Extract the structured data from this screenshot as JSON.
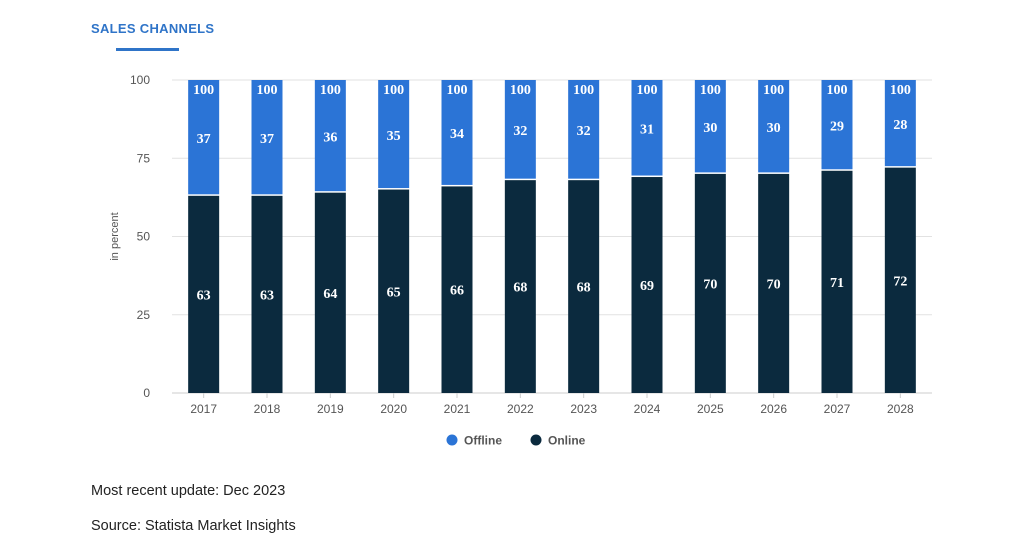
{
  "title": "SALES CHANNELS",
  "footer": {
    "update": "Most recent update: Dec 2023",
    "source": "Source: Statista Market Insights"
  },
  "chart_data": {
    "type": "bar",
    "stacked": true,
    "categories": [
      "2017",
      "2018",
      "2019",
      "2020",
      "2021",
      "2022",
      "2023",
      "2024",
      "2025",
      "2026",
      "2027",
      "2028"
    ],
    "series": [
      {
        "name": "Online",
        "color": "#0b2a3e",
        "values": [
          63,
          63,
          64,
          65,
          66,
          68,
          68,
          69,
          70,
          70,
          71,
          72
        ]
      },
      {
        "name": "Offline",
        "color": "#2b74d6",
        "values": [
          37,
          37,
          36,
          35,
          34,
          32,
          32,
          31,
          30,
          30,
          29,
          28
        ]
      }
    ],
    "totals": [
      100,
      100,
      100,
      100,
      100,
      100,
      100,
      100,
      100,
      100,
      100,
      100
    ],
    "ylabel": "in percent",
    "ylim": [
      0,
      100
    ],
    "yticks": [
      0,
      25,
      50,
      75,
      100
    ],
    "grid": true,
    "legend": {
      "placement": "bottom",
      "order": [
        "Offline",
        "Online"
      ]
    }
  }
}
